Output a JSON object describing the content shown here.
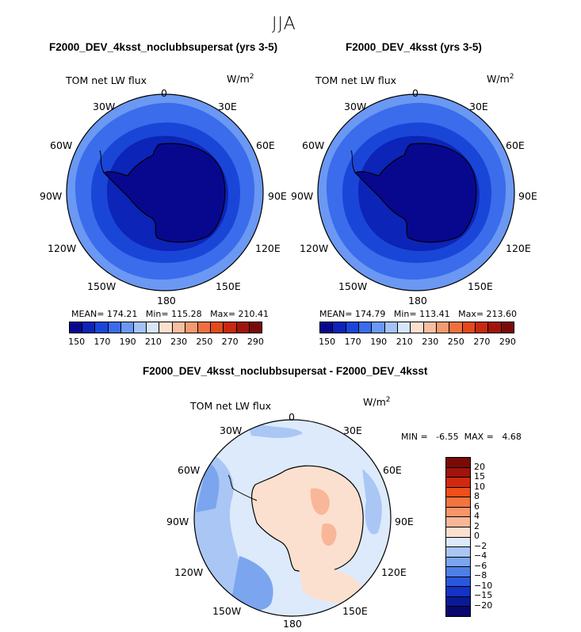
{
  "season": "JJA",
  "panels": [
    {
      "title": "F2000_DEV_4ksst_noclubbsupersat (yrs 3-5)",
      "variable": "TOM net LW flux",
      "units": "W/m",
      "units_exp": "2",
      "stats": "MEAN= 174.21   Min= 115.28   Max= 210.41",
      "colorbar_ticks": [
        "150",
        "170",
        "190",
        "210",
        "230",
        "250",
        "270",
        "290"
      ]
    },
    {
      "title": "F2000_DEV_4ksst (yrs 3-5)",
      "variable": "TOM net LW flux",
      "units": "W/m",
      "units_exp": "2",
      "stats": "MEAN= 174.79   Min= 113.41   Max= 213.60",
      "colorbar_ticks": [
        "150",
        "170",
        "190",
        "210",
        "230",
        "250",
        "270",
        "290"
      ]
    },
    {
      "title": "F2000_DEV_4ksst_noclubbsupersat - F2000_DEV_4ksst",
      "variable": "TOM net LW flux",
      "units": "W/m",
      "units_exp": "2",
      "stats": "MIN =   -6.55  MAX =   4.68",
      "colorbar_ticks": [
        "20",
        "15",
        "10",
        "8",
        "6",
        "4",
        "2",
        "0",
        "−2",
        "−4",
        "−6",
        "−8",
        "−10",
        "−15",
        "−20"
      ]
    }
  ],
  "lon_labels": [
    "0",
    "30E",
    "60E",
    "90E",
    "120E",
    "150E",
    "180",
    "150W",
    "120W",
    "90W",
    "60W",
    "30W"
  ],
  "colors": {
    "abs_scale": [
      "#08088f",
      "#0c24b8",
      "#1a46d8",
      "#3a6cec",
      "#6a98f2",
      "#a3c3f7",
      "#d7e6fb",
      "#fbe0cf",
      "#f7bea0",
      "#f39a70",
      "#ee7040",
      "#e24a1c",
      "#c72a10",
      "#a0140c",
      "#7a0a08"
    ],
    "diff_scale": [
      "#7a0a08",
      "#a0140c",
      "#d0290f",
      "#ef4f18",
      "#f3743f",
      "#f6966a",
      "#f8b799",
      "#fbe0cf",
      "#dceafb",
      "#a9c6f5",
      "#7ca5ef",
      "#4f7fe6",
      "#2a57de",
      "#1233c4",
      "#0a1a95",
      "#08086e"
    ]
  }
}
